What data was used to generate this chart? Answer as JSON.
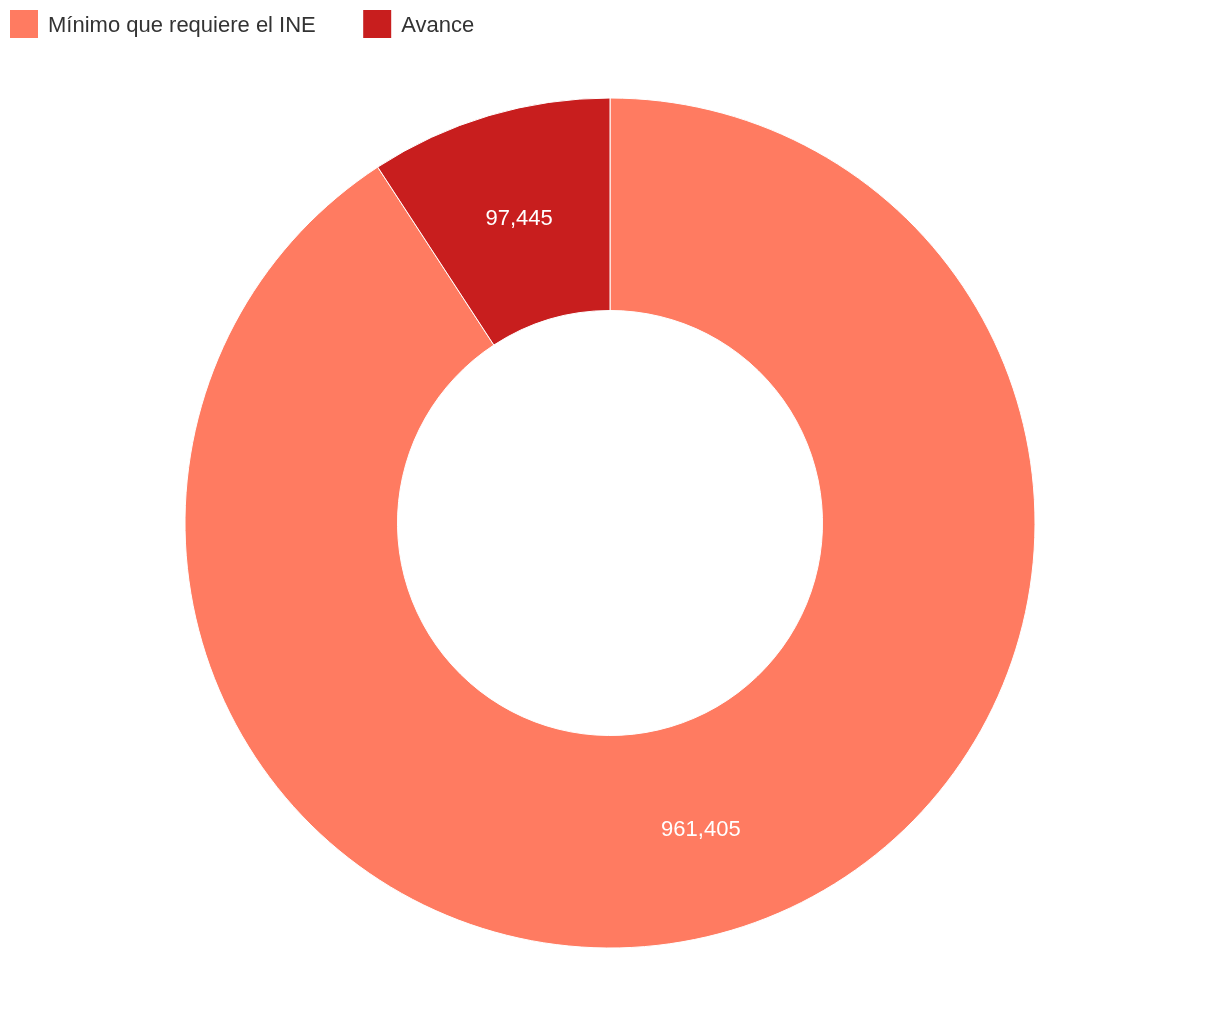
{
  "chart_data": {
    "type": "donut",
    "categories": [
      "Mínimo que requiere el INE",
      "Avance"
    ],
    "values": [
      961405,
      97445
    ],
    "colors": [
      "#ff7b61",
      "#c81e1e"
    ],
    "value_labels": [
      "961,405",
      "97,445"
    ],
    "legend": "top left"
  }
}
